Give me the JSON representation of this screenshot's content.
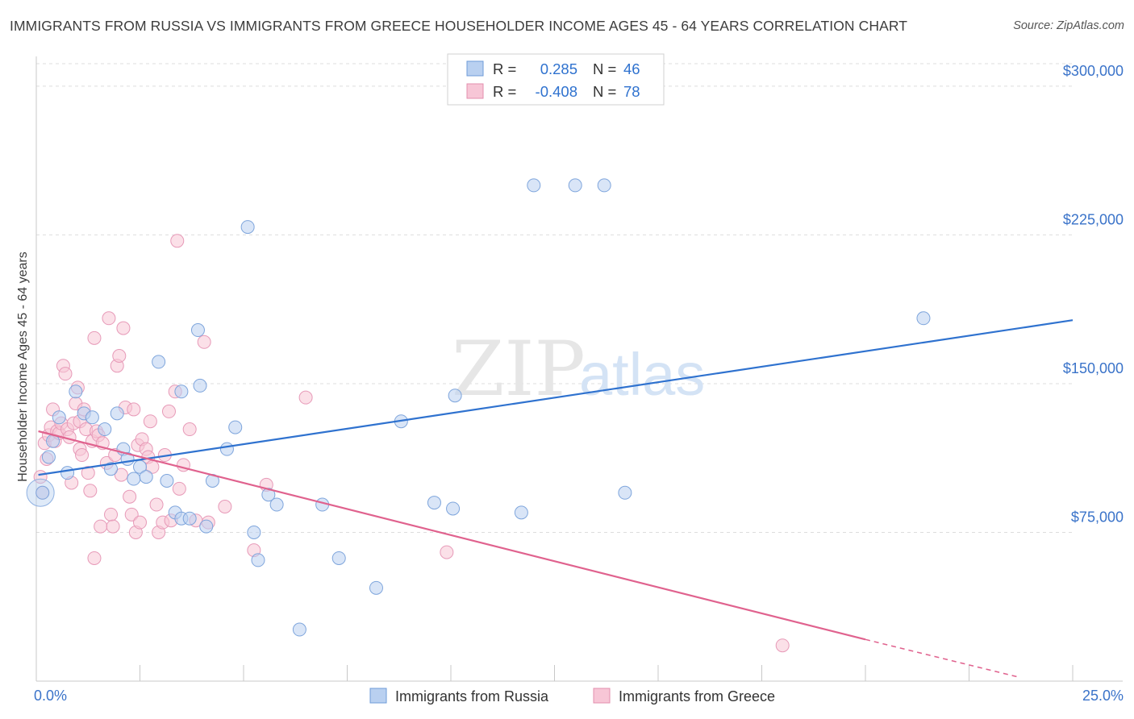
{
  "title": "IMMIGRANTS FROM RUSSIA VS IMMIGRANTS FROM GREECE HOUSEHOLDER INCOME AGES 45 - 64 YEARS CORRELATION CHART",
  "source": "Source: ZipAtlas.com",
  "watermark": {
    "zip": "ZIP",
    "atlas": "atlas"
  },
  "colors": {
    "russia": "#2f72cf",
    "greece": "#e0628e",
    "russia_fill": "#b9d0f0",
    "greece_fill": "#f7c6d6",
    "axis_text": "#3a73c9"
  },
  "legend": {
    "rows": [
      {
        "r_label": "R =",
        "r_value": "0.285",
        "n_label": "N =",
        "n_value": "46"
      },
      {
        "r_label": "R =",
        "r_value": "-0.408",
        "n_label": "N =",
        "n_value": "78"
      }
    ]
  },
  "bottom_legend": {
    "russia": "Immigrants from Russia",
    "greece": "Immigrants from Greece"
  },
  "chart_data": {
    "type": "scatter",
    "title": "IMMIGRANTS FROM RUSSIA VS IMMIGRANTS FROM GREECE HOUSEHOLDER INCOME AGES 45 - 64 YEARS CORRELATION CHART",
    "xlabel": "",
    "ylabel": "Householder Income Ages 45 - 64 years",
    "xlim": [
      0,
      25
    ],
    "ylim": [
      0,
      315000
    ],
    "x_tick_labels": [
      "0.0%",
      "25.0%"
    ],
    "y_ticks": [
      75000,
      150000,
      225000,
      300000
    ],
    "y_tick_labels": [
      "$75,000",
      "$150,000",
      "$225,000",
      "$300,000"
    ],
    "grid": true,
    "series": [
      {
        "name": "Immigrants from Russia",
        "r": 0.285,
        "n": 46,
        "trend": {
          "x": [
            0.05,
            25
          ],
          "y": [
            104000,
            182000
          ]
        },
        "points": [
          [
            0.15,
            95000
          ],
          [
            0.3,
            113000
          ],
          [
            0.4,
            121000
          ],
          [
            0.55,
            133000
          ],
          [
            0.75,
            105000
          ],
          [
            0.95,
            146000
          ],
          [
            1.15,
            135000
          ],
          [
            1.35,
            133000
          ],
          [
            1.65,
            127000
          ],
          [
            1.8,
            107000
          ],
          [
            1.95,
            135000
          ],
          [
            2.1,
            117000
          ],
          [
            2.2,
            112000
          ],
          [
            2.35,
            102000
          ],
          [
            2.5,
            108000
          ],
          [
            2.65,
            103000
          ],
          [
            2.95,
            161000
          ],
          [
            3.15,
            101000
          ],
          [
            3.35,
            85000
          ],
          [
            3.5,
            146000
          ],
          [
            3.5,
            82000
          ],
          [
            3.7,
            82000
          ],
          [
            3.9,
            177000
          ],
          [
            3.95,
            149000
          ],
          [
            4.1,
            78000
          ],
          [
            4.25,
            101000
          ],
          [
            4.6,
            117000
          ],
          [
            4.8,
            128000
          ],
          [
            5.1,
            229000
          ],
          [
            5.25,
            75000
          ],
          [
            5.35,
            61000
          ],
          [
            5.6,
            94000
          ],
          [
            5.8,
            89000
          ],
          [
            6.35,
            26000
          ],
          [
            6.9,
            89000
          ],
          [
            7.3,
            62000
          ],
          [
            8.2,
            47000
          ],
          [
            8.8,
            131000
          ],
          [
            9.6,
            90000
          ],
          [
            10.05,
            87000
          ],
          [
            10.1,
            144000
          ],
          [
            11.7,
            85000
          ],
          [
            12.0,
            250000
          ],
          [
            13.0,
            250000
          ],
          [
            13.7,
            250000
          ],
          [
            14.2,
            95000
          ],
          [
            21.4,
            183000
          ]
        ],
        "big_point": [
          0.1,
          95000
        ]
      },
      {
        "name": "Immigrants from Greece",
        "r": -0.408,
        "n": 78,
        "trend": {
          "x": [
            0.05,
            20
          ],
          "y": [
            126000,
            21000
          ]
        },
        "trend_dashed": {
          "x": [
            20,
            23.7
          ],
          "y": [
            21000,
            2000
          ]
        },
        "points": [
          [
            0.1,
            103000
          ],
          [
            0.15,
            95000
          ],
          [
            0.2,
            120000
          ],
          [
            0.25,
            112000
          ],
          [
            0.3,
            124000
          ],
          [
            0.35,
            128000
          ],
          [
            0.4,
            137000
          ],
          [
            0.45,
            121000
          ],
          [
            0.5,
            126000
          ],
          [
            0.55,
            125000
          ],
          [
            0.6,
            130000
          ],
          [
            0.65,
            159000
          ],
          [
            0.7,
            155000
          ],
          [
            0.75,
            127000
          ],
          [
            0.8,
            123000
          ],
          [
            0.85,
            100000
          ],
          [
            0.9,
            130000
          ],
          [
            0.95,
            140000
          ],
          [
            1.0,
            148000
          ],
          [
            1.05,
            131000
          ],
          [
            1.05,
            117000
          ],
          [
            1.1,
            114000
          ],
          [
            1.15,
            137000
          ],
          [
            1.2,
            127000
          ],
          [
            1.25,
            105000
          ],
          [
            1.3,
            96000
          ],
          [
            1.35,
            121000
          ],
          [
            1.4,
            173000
          ],
          [
            1.4,
            62000
          ],
          [
            1.45,
            126000
          ],
          [
            1.5,
            124000
          ],
          [
            1.55,
            78000
          ],
          [
            1.6,
            120000
          ],
          [
            1.7,
            110000
          ],
          [
            1.75,
            183000
          ],
          [
            1.8,
            84000
          ],
          [
            1.85,
            78000
          ],
          [
            1.9,
            114000
          ],
          [
            1.95,
            159000
          ],
          [
            2.0,
            164000
          ],
          [
            2.05,
            104000
          ],
          [
            2.1,
            178000
          ],
          [
            2.15,
            138000
          ],
          [
            2.25,
            93000
          ],
          [
            2.3,
            84000
          ],
          [
            2.35,
            137000
          ],
          [
            2.4,
            75000
          ],
          [
            2.45,
            119000
          ],
          [
            2.5,
            80000
          ],
          [
            2.55,
            122000
          ],
          [
            2.65,
            117000
          ],
          [
            2.7,
            113000
          ],
          [
            2.75,
            131000
          ],
          [
            2.8,
            108000
          ],
          [
            2.9,
            89000
          ],
          [
            2.95,
            75000
          ],
          [
            3.05,
            80000
          ],
          [
            3.1,
            114000
          ],
          [
            3.2,
            136000
          ],
          [
            3.25,
            81000
          ],
          [
            3.35,
            146000
          ],
          [
            3.4,
            222000
          ],
          [
            3.45,
            97000
          ],
          [
            3.55,
            109000
          ],
          [
            3.7,
            127000
          ],
          [
            3.85,
            81000
          ],
          [
            4.05,
            171000
          ],
          [
            4.15,
            80000
          ],
          [
            4.55,
            88000
          ],
          [
            5.25,
            66000
          ],
          [
            5.55,
            99000
          ],
          [
            6.5,
            143000
          ],
          [
            9.9,
            65000
          ],
          [
            18.0,
            18000
          ]
        ]
      }
    ]
  }
}
